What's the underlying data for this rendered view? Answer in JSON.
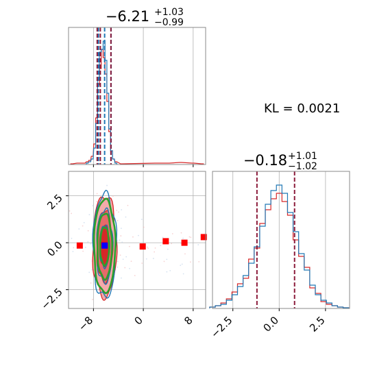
{
  "chart_data": {
    "type": "corner",
    "colors": {
      "blue": "#1f77b4",
      "red": "#d62728",
      "green": "#2ca02c",
      "marker_red": "#ff0000",
      "marker_blue": "#0000ff",
      "grid": "#b0b0b0",
      "quantile_dash": "#8b1a3a",
      "fill_light": "#f4aaaa"
    },
    "annotation": "KL = 0.0021",
    "param1": {
      "title_main": "−6.21",
      "title_sup": "+1.03",
      "title_sub": "−0.99",
      "xlim": [
        -12,
        10
      ],
      "ticks": [
        -8,
        0,
        8
      ],
      "tick_labels": [
        "−8",
        "0",
        "8"
      ],
      "quantiles_blue": [
        -7.2,
        -6.21,
        -5.18
      ],
      "quantiles_red": [
        -7.4,
        -6.9,
        -5.2
      ],
      "hist_blue": [
        [
          -9.0,
          0.01
        ],
        [
          -8.6,
          0.02
        ],
        [
          -8.2,
          0.04
        ],
        [
          -7.8,
          0.12
        ],
        [
          -7.5,
          0.3
        ],
        [
          -7.2,
          0.62
        ],
        [
          -6.9,
          0.82
        ],
        [
          -6.6,
          0.84
        ],
        [
          -6.3,
          0.9
        ],
        [
          -6.0,
          0.76
        ],
        [
          -5.7,
          0.52
        ],
        [
          -5.4,
          0.26
        ],
        [
          -5.1,
          0.1
        ],
        [
          -4.8,
          0.04
        ],
        [
          -4.4,
          0.01
        ]
      ],
      "hist_red": [
        [
          -11.5,
          0.005
        ],
        [
          -10.5,
          0.01
        ],
        [
          -9.5,
          0.01
        ],
        [
          -9.0,
          0.02
        ],
        [
          -8.6,
          0.03
        ],
        [
          -8.2,
          0.06
        ],
        [
          -7.8,
          0.15
        ],
        [
          -7.5,
          0.34
        ],
        [
          -7.2,
          0.58
        ],
        [
          -6.9,
          0.7
        ],
        [
          -6.6,
          0.84
        ],
        [
          -6.3,
          0.78
        ],
        [
          -6.0,
          0.66
        ],
        [
          -5.7,
          0.46
        ],
        [
          -5.4,
          0.24
        ],
        [
          -5.1,
          0.1
        ],
        [
          -4.8,
          0.04
        ],
        [
          -4.4,
          0.02
        ],
        [
          -3.5,
          0.005
        ],
        [
          2.0,
          0.01
        ],
        [
          4.0,
          0.01
        ],
        [
          6.0,
          0.015
        ],
        [
          8.0,
          0.01
        ],
        [
          9.5,
          0.005
        ]
      ]
    },
    "param2": {
      "title_main": "−0.18",
      "title_sup": "+1.01",
      "title_sub": "−1.02",
      "xlim": [
        -3.6,
        3.8
      ],
      "ticks": [
        -2.5,
        0.0,
        2.5
      ],
      "tick_labels": [
        "−2.5",
        "0.0",
        "2.5"
      ],
      "quantiles_blue": [
        -1.2,
        -0.18,
        0.83
      ],
      "quantiles_red": [
        -1.2,
        -0.18,
        0.83
      ],
      "hist_blue": [
        [
          -3.6,
          0.01
        ],
        [
          -3.3,
          0.02
        ],
        [
          -3.0,
          0.03
        ],
        [
          -2.7,
          0.06
        ],
        [
          -2.4,
          0.1
        ],
        [
          -2.1,
          0.16
        ],
        [
          -1.8,
          0.24
        ],
        [
          -1.5,
          0.33
        ],
        [
          -1.2,
          0.45
        ],
        [
          -0.9,
          0.6
        ],
        [
          -0.6,
          0.76
        ],
        [
          -0.3,
          0.86
        ],
        [
          0.0,
          0.9
        ],
        [
          0.3,
          0.84
        ],
        [
          0.6,
          0.7
        ],
        [
          0.9,
          0.56
        ],
        [
          1.2,
          0.4
        ],
        [
          1.5,
          0.28
        ],
        [
          1.8,
          0.17
        ],
        [
          2.1,
          0.1
        ],
        [
          2.4,
          0.06
        ],
        [
          2.7,
          0.04
        ],
        [
          3.0,
          0.02
        ],
        [
          3.3,
          0.01
        ],
        [
          3.6,
          0.005
        ]
      ],
      "hist_red": [
        [
          -3.6,
          0.01
        ],
        [
          -3.3,
          0.02
        ],
        [
          -3.0,
          0.04
        ],
        [
          -2.7,
          0.07
        ],
        [
          -2.4,
          0.12
        ],
        [
          -2.1,
          0.18
        ],
        [
          -1.8,
          0.22
        ],
        [
          -1.5,
          0.36
        ],
        [
          -1.2,
          0.44
        ],
        [
          -0.9,
          0.62
        ],
        [
          -0.6,
          0.72
        ],
        [
          -0.3,
          0.8
        ],
        [
          0.0,
          0.84
        ],
        [
          0.3,
          0.78
        ],
        [
          0.6,
          0.68
        ],
        [
          0.9,
          0.5
        ],
        [
          1.2,
          0.38
        ],
        [
          1.5,
          0.3
        ],
        [
          1.8,
          0.15
        ],
        [
          2.1,
          0.11
        ],
        [
          2.4,
          0.05
        ],
        [
          2.7,
          0.03
        ],
        [
          3.0,
          0.02
        ],
        [
          3.3,
          0.01
        ],
        [
          3.6,
          0.005
        ]
      ]
    },
    "joint": {
      "xlim": [
        -12,
        10
      ],
      "ylim": [
        -3.5,
        3.8
      ],
      "yticks": [
        -2.5,
        0.0,
        2.5
      ],
      "ytick_labels": [
        "−2.5",
        "0.0",
        "2.5"
      ],
      "center": [
        -6.21,
        -0.18
      ],
      "contour_sigmas_x": [
        0.8,
        1.3,
        1.9
      ],
      "contour_sigmas_y": [
        1.1,
        1.9,
        2.7
      ],
      "red_markers": [
        [
          -10.2,
          -0.15
        ],
        [
          -6.3,
          -0.12
        ],
        [
          -0.1,
          -0.2
        ],
        [
          3.6,
          0.08
        ],
        [
          6.6,
          0.0
        ],
        [
          9.7,
          0.3
        ]
      ],
      "blue_marker": [
        -6.21,
        -0.15
      ]
    }
  }
}
